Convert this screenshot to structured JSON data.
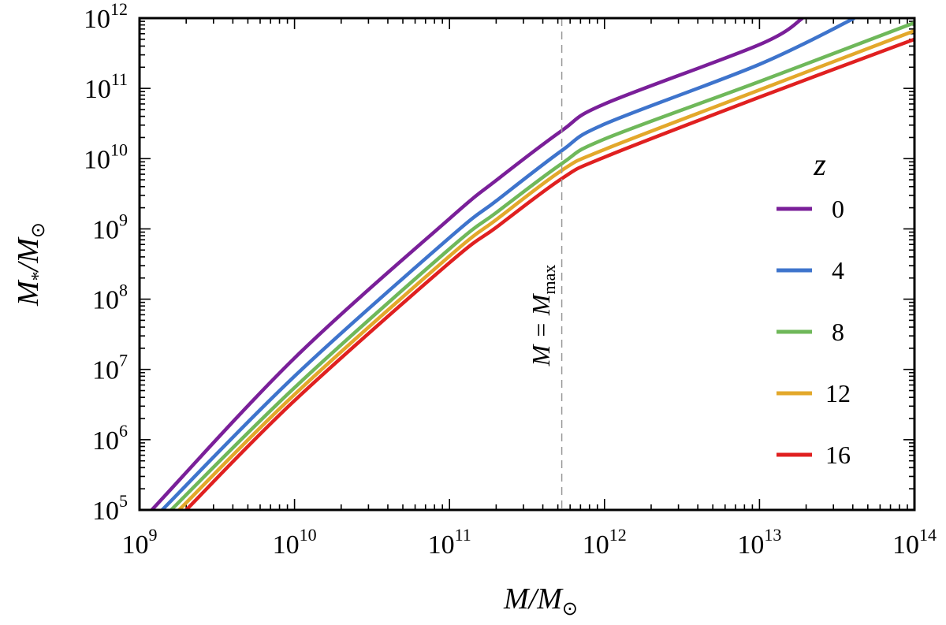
{
  "chart_data": {
    "type": "line",
    "xscale": "log",
    "yscale": "log",
    "xlim": [
      1000000000.0,
      100000000000000.0
    ],
    "ylim": [
      100000.0,
      1000000000000.0
    ],
    "xlabel": {
      "main": "M/M",
      "sub": "⊙"
    },
    "ylabel": {
      "main": "M",
      "star": "*",
      "div": "/M",
      "sub": "⊙"
    },
    "x_ticks": [
      {
        "base": "10",
        "exp": "9"
      },
      {
        "base": "10",
        "exp": "10"
      },
      {
        "base": "10",
        "exp": "11"
      },
      {
        "base": "10",
        "exp": "12"
      },
      {
        "base": "10",
        "exp": "13"
      },
      {
        "base": "10",
        "exp": "14"
      }
    ],
    "y_ticks": [
      {
        "base": "10",
        "exp": "5"
      },
      {
        "base": "10",
        "exp": "6"
      },
      {
        "base": "10",
        "exp": "7"
      },
      {
        "base": "10",
        "exp": "8"
      },
      {
        "base": "10",
        "exp": "9"
      },
      {
        "base": "10",
        "exp": "10"
      },
      {
        "base": "10",
        "exp": "11"
      },
      {
        "base": "10",
        "exp": "12"
      }
    ],
    "legend": {
      "title": "z",
      "position": "right"
    },
    "annotation": {
      "text_main": "M = M",
      "text_sub": "max",
      "x": 530000000000.0
    },
    "series": [
      {
        "name": "0",
        "color": "#7a1f99",
        "x": [
          1200000000.0,
          10000000000.0,
          100000000000.0,
          200000000000.0,
          530000000000.0,
          1000000000000.0,
          10000000000000.0,
          19000000000000.0
        ],
        "y": [
          100000.0,
          14500000.0,
          1400000000.0,
          4900000000.0,
          25000000000.0,
          60000000000.0,
          420000000000.0,
          1000000000000.0
        ]
      },
      {
        "name": "4",
        "color": "#3e74cc",
        "x": [
          1400000000.0,
          10000000000.0,
          100000000000.0,
          200000000000.0,
          530000000000.0,
          1000000000000.0,
          10000000000000.0,
          41000000000000.0
        ],
        "y": [
          100000.0,
          8000000.0,
          750000000.0,
          2500000000.0,
          13000000000.0,
          31000000000.0,
          220000000000.0,
          1000000000000.0
        ]
      },
      {
        "name": "8",
        "color": "#6fb85a",
        "x": [
          1600000000.0,
          10000000000.0,
          100000000000.0,
          200000000000.0,
          530000000000.0,
          1000000000000.0,
          10000000000000.0,
          100000000000000.0
        ],
        "y": [
          100000.0,
          5500000.0,
          520000000.0,
          1700000000.0,
          8500000000.0,
          19000000000.0,
          125000000000.0,
          860000000000.0
        ]
      },
      {
        "name": "12",
        "color": "#e3a82b",
        "x": [
          1800000000.0,
          10000000000.0,
          100000000000.0,
          200000000000.0,
          530000000000.0,
          1000000000000.0,
          10000000000000.0,
          100000000000000.0
        ],
        "y": [
          100000.0,
          4400000.0,
          410000000.0,
          1350000000.0,
          6800000000.0,
          13500000000.0,
          95000000000.0,
          660000000000.0
        ]
      },
      {
        "name": "16",
        "color": "#e02020",
        "x": [
          2000000000.0,
          10000000000.0,
          100000000000.0,
          200000000000.0,
          530000000000.0,
          1000000000000.0,
          10000000000000.0,
          100000000000000.0
        ],
        "y": [
          100000.0,
          3600000.0,
          330000000.0,
          1050000000.0,
          5200000000.0,
          10500000000.0,
          75000000000.0,
          500000000000.0
        ]
      }
    ]
  }
}
